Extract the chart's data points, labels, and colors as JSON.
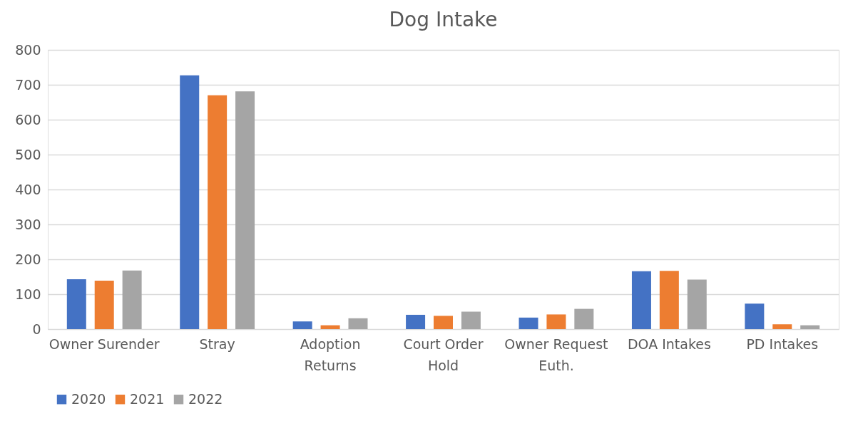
{
  "chart_data": {
    "type": "bar",
    "title": "Dog Intake",
    "categories": [
      "Owner Surender",
      "Stray",
      "Adoption Returns",
      "Court Order Hold",
      "Owner Request Euth.",
      "DOA Intakes",
      "PD Intakes"
    ],
    "series": [
      {
        "name": "2020",
        "color": "#4472c4",
        "values": [
          143,
          727,
          22,
          41,
          33,
          166,
          73
        ]
      },
      {
        "name": "2021",
        "color": "#ed7d31",
        "values": [
          139,
          670,
          11,
          38,
          42,
          167,
          14
        ]
      },
      {
        "name": "2022",
        "color": "#a5a5a5",
        "values": [
          168,
          681,
          31,
          50,
          58,
          142,
          11
        ]
      }
    ],
    "ylim": [
      0,
      800
    ],
    "yticks": [
      0,
      100,
      200,
      300,
      400,
      500,
      600,
      700,
      800
    ],
    "grid": "y",
    "legend": "bottom"
  }
}
